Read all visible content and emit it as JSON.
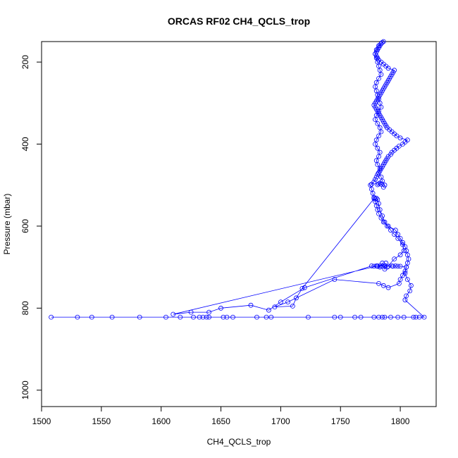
{
  "chart_data": {
    "type": "line",
    "title": "ORCAS RF02 CH4_QCLS_trop",
    "xlabel": "CH4_QCLS_trop",
    "ylabel": "Pressure (mbar)",
    "xlim": [
      1500,
      1830
    ],
    "ylim": [
      1040,
      150
    ],
    "y_reversed": true,
    "x_ticks": [
      1500,
      1550,
      1600,
      1650,
      1700,
      1750,
      1800
    ],
    "y_ticks": [
      200,
      400,
      600,
      800,
      1000
    ],
    "grid": false,
    "legend": "none",
    "series_color": "#0000ff",
    "marker": "open-circle",
    "series": [
      {
        "x": [
          1508,
          1530,
          1542,
          1559,
          1582,
          1604,
          1616,
          1627,
          1632,
          1635,
          1638,
          1640,
          1652,
          1655,
          1660,
          1680,
          1688,
          1692,
          1723,
          1745,
          1750,
          1762,
          1767,
          1778,
          1782,
          1785,
          1787,
          1792,
          1798,
          1803,
          1811,
          1813,
          1816,
          1820,
          1804,
          1805,
          1808,
          1809,
          1806,
          1804,
          1805,
          1800,
          1798,
          1796,
          1794,
          1793,
          1790,
          1787,
          1785,
          1783,
          1781,
          1780,
          1778,
          1776,
          1720,
          1700,
          1690,
          1675,
          1650,
          1640,
          1625,
          1610,
          1781,
          1783,
          1785,
          1787,
          1788,
          1789,
          1795,
          1800,
          1803,
          1802,
          1798,
          1795,
          1792,
          1789,
          1787,
          1785,
          1783,
          1782,
          1781,
          1780,
          1779,
          1778,
          1718,
          1713,
          1710,
          1695,
          1706,
          1745,
          1782,
          1786,
          1790,
          1799,
          1800,
          1802,
          1804,
          1805,
          1806,
          1807,
          1806,
          1805,
          1804,
          1802,
          1800,
          1798,
          1796,
          1790,
          1786,
          1784,
          1782,
          1781,
          1780,
          1779,
          1778,
          1777,
          1776,
          1775,
          1776,
          1778,
          1779,
          1780,
          1781,
          1782,
          1783,
          1784,
          1785,
          1786,
          1787,
          1788,
          1789,
          1790,
          1792,
          1793,
          1795,
          1797,
          1799,
          1802,
          1804,
          1806,
          1800,
          1797,
          1795,
          1793,
          1791,
          1789,
          1788,
          1787,
          1786,
          1785,
          1784,
          1783,
          1782,
          1781,
          1780,
          1779,
          1778,
          1779,
          1780,
          1781,
          1782,
          1783,
          1784,
          1785,
          1786,
          1787,
          1788,
          1789,
          1790,
          1791,
          1792,
          1793,
          1794,
          1795,
          1790,
          1788,
          1786,
          1784,
          1782,
          1781,
          1780,
          1779,
          1780,
          1781,
          1782,
          1783,
          1784,
          1785,
          1786,
          1784,
          1782,
          1780,
          1779,
          1780,
          1781,
          1782,
          1783,
          1784,
          1782,
          1780,
          1779,
          1780,
          1781,
          1782,
          1783,
          1784,
          1782,
          1780,
          1779,
          1781,
          1783,
          1784,
          1782,
          1780,
          1779,
          1781,
          1783,
          1782,
          1780,
          1781,
          1783,
          1782,
          1784,
          1785,
          1787,
          1786,
          1784,
          1783,
          1782,
          1781
        ],
        "y": [
          822,
          822,
          822,
          822,
          822,
          822,
          822,
          822,
          822,
          822,
          822,
          822,
          822,
          822,
          822,
          822,
          822,
          822,
          822,
          822,
          822,
          822,
          822,
          822,
          822,
          822,
          822,
          822,
          822,
          822,
          822,
          822,
          822,
          822,
          780,
          770,
          758,
          745,
          730,
          715,
          700,
          698,
          698,
          697,
          698,
          697,
          698,
          697,
          698,
          697,
          698,
          697,
          698,
          697,
          750,
          785,
          805,
          793,
          800,
          810,
          810,
          815,
          697,
          700,
          690,
          705,
          690,
          700,
          680,
          670,
          660,
          645,
          630,
          620,
          610,
          600,
          590,
          575,
          560,
          545,
          535,
          532,
          534,
          533,
          752,
          775,
          795,
          797,
          785,
          730,
          740,
          745,
          750,
          740,
          730,
          720,
          710,
          700,
          690,
          680,
          670,
          660,
          650,
          640,
          630,
          620,
          610,
          600,
          590,
          580,
          570,
          560,
          550,
          540,
          530,
          520,
          510,
          500,
          498,
          492,
          486,
          480,
          474,
          470,
          465,
          460,
          455,
          450,
          445,
          440,
          435,
          430,
          425,
          420,
          415,
          410,
          405,
          400,
          395,
          390,
          385,
          380,
          375,
          370,
          365,
          360,
          355,
          350,
          345,
          340,
          335,
          330,
          325,
          320,
          315,
          310,
          305,
          300,
          295,
          290,
          285,
          280,
          275,
          270,
          265,
          260,
          255,
          250,
          245,
          240,
          235,
          230,
          225,
          220,
          215,
          210,
          205,
          200,
          195,
          190,
          185,
          180,
          175,
          170,
          165,
          160,
          155,
          152,
          150,
          155,
          160,
          170,
          180,
          190,
          200,
          210,
          220,
          230,
          240,
          250,
          260,
          270,
          280,
          290,
          300,
          310,
          320,
          330,
          340,
          350,
          360,
          370,
          380,
          390,
          400,
          410,
          420,
          430,
          440,
          450,
          460,
          470,
          480,
          490,
          500,
          505,
          498,
          495,
          497,
          499
        ]
      }
    ]
  }
}
